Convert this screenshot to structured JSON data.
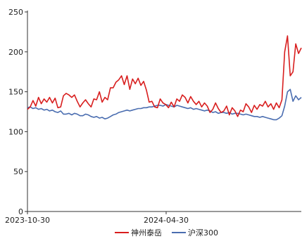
{
  "chart_data": {
    "type": "line",
    "x_ticks": [
      "2023-10-30",
      "2024-04-30"
    ],
    "ylim": [
      0,
      250
    ],
    "y_ticks": [
      0,
      50,
      100,
      150,
      200,
      250
    ],
    "grid": false,
    "legend_position": "bottom-center",
    "series": [
      {
        "name": "神州泰岳",
        "color": "#d81e1e",
        "values": [
          128,
          131,
          139,
          132,
          143,
          135,
          141,
          137,
          143,
          136,
          142,
          130,
          131,
          145,
          148,
          146,
          143,
          146,
          138,
          131,
          136,
          140,
          135,
          131,
          141,
          140,
          150,
          137,
          143,
          140,
          155,
          155,
          162,
          165,
          170,
          159,
          170,
          153,
          166,
          160,
          167,
          158,
          163,
          152,
          137,
          138,
          131,
          130,
          141,
          136,
          134,
          130,
          137,
          131,
          141,
          138,
          146,
          143,
          136,
          144,
          138,
          134,
          138,
          131,
          136,
          132,
          124,
          128,
          136,
          129,
          124,
          126,
          132,
          121,
          130,
          126,
          119,
          127,
          125,
          135,
          131,
          124,
          133,
          128,
          134,
          132,
          138,
          131,
          135,
          128,
          136,
          130,
          140,
          200,
          220,
          170,
          175,
          210,
          198,
          205
        ]
      },
      {
        "name": "沪深300",
        "color": "#4a6db0",
        "values": [
          130,
          131,
          129,
          130,
          128,
          129,
          127,
          128,
          126,
          127,
          125,
          124,
          126,
          122,
          122,
          123,
          121,
          123,
          122,
          120,
          120,
          122,
          121,
          119,
          118,
          119,
          117,
          118,
          116,
          117,
          119,
          121,
          122,
          124,
          125,
          126,
          127,
          126,
          127,
          128,
          129,
          129,
          130,
          130,
          131,
          131,
          132,
          133,
          133,
          132,
          134,
          133,
          132,
          131,
          133,
          132,
          131,
          130,
          129,
          130,
          128,
          129,
          128,
          127,
          126,
          127,
          126,
          124,
          125,
          123,
          124,
          124,
          123,
          124,
          122,
          123,
          123,
          122,
          121,
          122,
          121,
          120,
          119,
          119,
          118,
          119,
          118,
          117,
          116,
          115,
          115,
          117,
          120,
          132,
          150,
          153,
          138,
          145,
          140,
          143
        ]
      }
    ]
  }
}
